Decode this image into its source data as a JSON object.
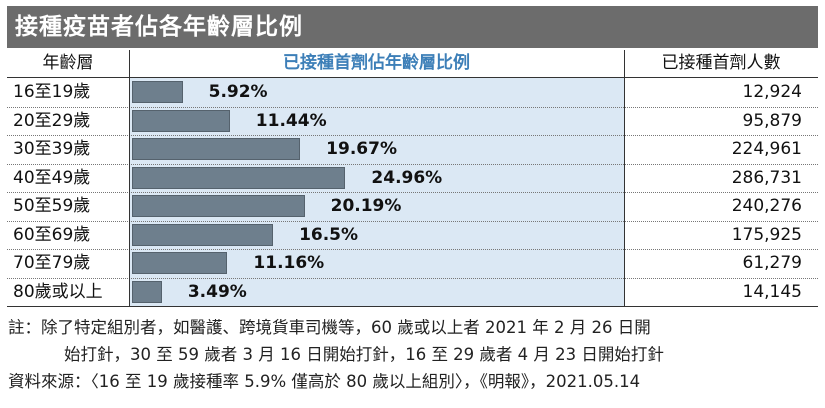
{
  "title": "接種疫苗者佔各年齡層比例",
  "chart_data": {
    "type": "bar",
    "title": "接種疫苗者佔各年齡層比例",
    "columns": [
      "年齡層",
      "已接種首劑佔年齡層比例",
      "已接種首劑人數"
    ],
    "categories": [
      "16至19歲",
      "20至29歲",
      "30至39歲",
      "40至49歲",
      "50至59歲",
      "60至69歲",
      "70至79歲",
      "80歲或以上"
    ],
    "series": [
      {
        "name": "已接種首劑佔年齡層比例",
        "values": [
          5.92,
          11.44,
          19.67,
          24.96,
          20.19,
          16.5,
          11.16,
          3.49
        ]
      }
    ],
    "value_labels": [
      "5.92%",
      "11.44%",
      "19.67%",
      "24.96%",
      "20.19%",
      "16.5%",
      "11.16%",
      "3.49%"
    ],
    "counts": [
      "12,924",
      "95,879",
      "224,961",
      "286,731",
      "240,276",
      "175,925",
      "61,279",
      "14,145"
    ],
    "xlim": [
      0,
      100
    ]
  },
  "notes": {
    "line1": "註：除了特定組別者，如醫護、跨境貨車司機等，60 歲或以上者 2021 年 2 月 26 日開",
    "line2": "始打針，30 至 59 歲者 3 月 16 日開始打針，16 至 29 歲者 4 月 23 日開始打針",
    "source": "資料來源：〈16 至 19 歲接種率 5.9%  僅高於 80 歲以上組別〉，《明報》，2021.05.14"
  }
}
